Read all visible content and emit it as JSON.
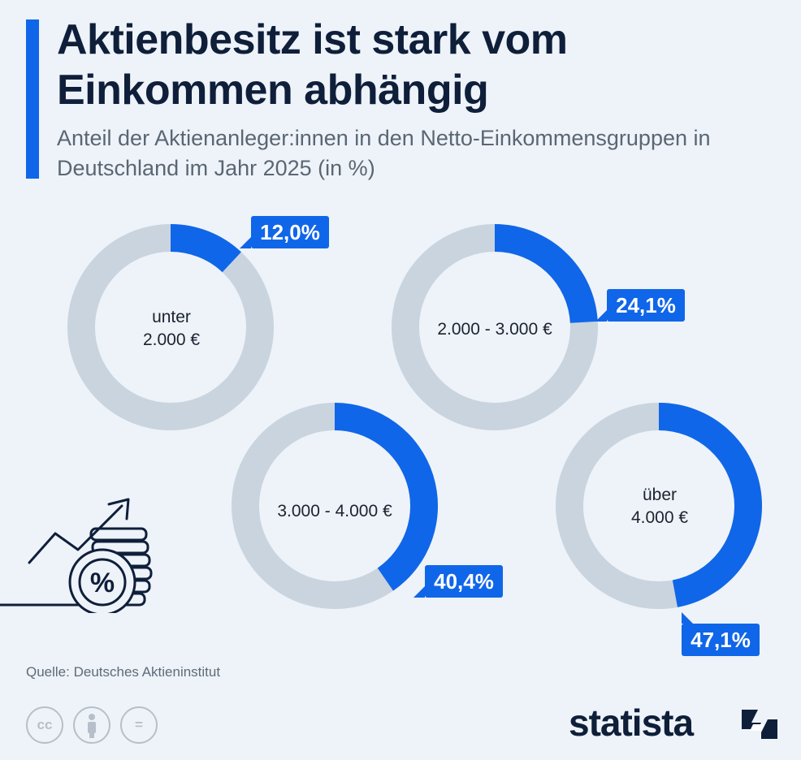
{
  "header": {
    "title": "Aktienbesitz ist stark vom Einkommen abhängig",
    "subtitle": "Anteil der Aktienanleger:innen in den Netto-Einkommensgruppen in Deutschland im Jahr 2025 (in %)"
  },
  "chart_data": {
    "type": "pie",
    "title": "Aktienbesitz ist stark vom Einkommen abhängig",
    "subtitle": "Anteil der Aktienanleger:innen in den Netto-Einkommensgruppen in Deutschland im Jahr 2025 (in %)",
    "unit": "%",
    "variant": "donut",
    "categories": [
      "unter 2.000 €",
      "2.000 - 3.000 €",
      "3.000 - 4.000 €",
      "über 4.000 €"
    ],
    "values": [
      12.0,
      24.1,
      40.4,
      47.1
    ],
    "data_labels": [
      "12,0%",
      "24,1%",
      "40,4%",
      "47,1%"
    ],
    "center_labels": [
      [
        "unter",
        "2.000 €"
      ],
      [
        "2.000 - 3.000 €"
      ],
      [
        "3.000 - 4.000 €"
      ],
      [
        "über",
        "4.000 €"
      ]
    ],
    "colors": {
      "value": "#1066e8",
      "remainder": "#c9d4de"
    }
  },
  "footer": {
    "source": "Quelle: Deutsches Aktieninstitut",
    "license_icons": [
      "cc-icon",
      "by-icon",
      "nd-icon"
    ],
    "license_icon_text": [
      "cc",
      "",
      "="
    ],
    "brand": "statista"
  },
  "icons": {
    "decoration": "coin-stack-percent-icon",
    "logo_mark": "statista-logo-icon"
  },
  "colors": {
    "background": "#eef3f9",
    "accent": "#1066e8",
    "title": "#0f1f3a",
    "subtitle": "#5b6673"
  }
}
